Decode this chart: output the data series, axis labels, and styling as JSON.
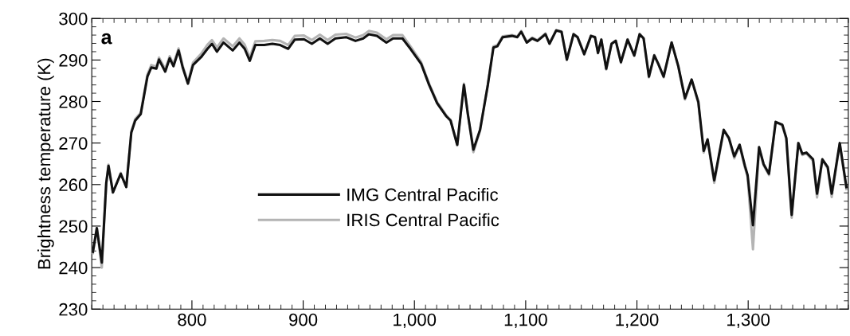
{
  "chart_data": {
    "type": "line",
    "ylabel": "Brightness temperature (K)",
    "annotations": [
      "a"
    ],
    "x": [
      711,
      714.5,
      719,
      723,
      725,
      729,
      736,
      741,
      745.5,
      749,
      754,
      760,
      763.5,
      768,
      770.4,
      776,
      780,
      783.4,
      788,
      791.7,
      796.4,
      801,
      808.3,
      814,
      818,
      822.5,
      828.4,
      836.7,
      842.7,
      847.4,
      852,
      857,
      865,
      872.3,
      879.4,
      886.5,
      892.4,
      900.7,
      907.8,
      915,
      922,
      929,
      938.6,
      947,
      954,
      959,
      966.3,
      974.8,
      980.8,
      989.2,
      996.4,
      1006,
      1013.2,
      1020.4,
      1028.8,
      1032.5,
      1038.5,
      1044.5,
      1048,
      1053,
      1059,
      1066,
      1071,
      1074.5,
      1079.3,
      1087.7,
      1092.5,
      1096,
      1101,
      1105.8,
      1110.6,
      1117.8,
      1121.4,
      1127.4,
      1132.2,
      1137,
      1143,
      1146.6,
      1152.6,
      1158.7,
      1162.3,
      1165,
      1168,
      1172.4,
      1177.2,
      1181,
      1185.6,
      1191.6,
      1197.6,
      1202.4,
      1206,
      1210.8,
      1215.6,
      1219.2,
      1224,
      1231.2,
      1237.2,
      1243.2,
      1249.2,
      1255.2,
      1260,
      1263.5,
      1269.5,
      1278,
      1282.7,
      1287.5,
      1292.3,
      1297.1,
      1299.5,
      1304.3,
      1309.8,
      1313.9,
      1318.7,
      1324.7,
      1330.7,
      1334.3,
      1339.1,
      1345.1,
      1348.7,
      1352.3,
      1358.3,
      1361.9,
      1366.7,
      1371.5,
      1375.1,
      1382.3,
      1388.3
    ],
    "series": [
      {
        "name": "IMG Central Pacific",
        "color": "#111111",
        "values": [
          243.8,
          249.5,
          241.2,
          260.4,
          264.5,
          258.1,
          262.6,
          259.4,
          272.5,
          275.4,
          277,
          286,
          288.2,
          287.9,
          290.1,
          287.2,
          290.4,
          288.5,
          292.3,
          288.2,
          284.3,
          288.8,
          290.7,
          292.7,
          293.9,
          292,
          294.2,
          292.3,
          294.2,
          292.7,
          289.8,
          293.6,
          293.6,
          293.9,
          293.6,
          292.7,
          294.9,
          295,
          293.9,
          295.2,
          293.9,
          295.2,
          295.5,
          294.6,
          295.2,
          296.2,
          295.8,
          294.2,
          295.2,
          295.2,
          292.7,
          289.1,
          284,
          279.6,
          276.4,
          275.4,
          269.6,
          284,
          277,
          268.4,
          273.2,
          284,
          293,
          293.3,
          295.5,
          295.8,
          295.5,
          296.8,
          294.2,
          295.2,
          294.6,
          296.2,
          293.9,
          297.1,
          296.8,
          290.1,
          296.2,
          295.5,
          291.4,
          295.8,
          295.5,
          291.7,
          294.9,
          287.9,
          293.9,
          294.6,
          289.5,
          294.9,
          291.1,
          296.2,
          295.2,
          286,
          291.1,
          289.1,
          286,
          294.2,
          288.5,
          280.8,
          285.3,
          279.9,
          268.1,
          270.9,
          261,
          273.2,
          271.2,
          266.8,
          269.6,
          264.5,
          262.3,
          250.2,
          269,
          264.9,
          262.6,
          275.1,
          274.4,
          271.2,
          252.7,
          270,
          267.4,
          267.7,
          266.1,
          257.8,
          266.1,
          264.2,
          257.8,
          270,
          259.4
        ]
      },
      {
        "name": "IRIS Central Pacific",
        "color": "#b4b4b4",
        "values": [
          243.5,
          249.5,
          240,
          260.4,
          264.8,
          258.1,
          262.8,
          259.4,
          272.8,
          275.8,
          277.3,
          286.5,
          288.8,
          288.4,
          290.6,
          287.8,
          290.9,
          289,
          292.8,
          288.6,
          284.6,
          289.4,
          291.5,
          293.7,
          294.8,
          293,
          295.2,
          293.3,
          295.2,
          293.7,
          290.6,
          294.5,
          294.6,
          294.8,
          294.6,
          293.6,
          295.8,
          295.9,
          294.8,
          296.1,
          294.8,
          296.1,
          296.3,
          295.4,
          296,
          297,
          296.6,
          295,
          296,
          296,
          293.3,
          289.5,
          284.3,
          279.9,
          276.6,
          275.6,
          269.4,
          284.3,
          277,
          267.8,
          273,
          284.2,
          293.3,
          293.6,
          295.7,
          296,
          295.7,
          297,
          294.4,
          295.4,
          294.8,
          296.4,
          294,
          297.2,
          296.9,
          290,
          296.3,
          295.6,
          291.3,
          295.9,
          295.6,
          291.6,
          295,
          287.7,
          294,
          294.7,
          289.3,
          295,
          291,
          296.3,
          295.3,
          285.8,
          291.2,
          289,
          285.8,
          294.3,
          288.3,
          280.5,
          285.2,
          279.6,
          267.7,
          270.7,
          260.4,
          273,
          271,
          266.3,
          269.4,
          264,
          261.8,
          244.4,
          268.8,
          264.6,
          262.3,
          275,
          274.2,
          270.9,
          252,
          269.8,
          267.1,
          267.5,
          265.7,
          256.9,
          265.8,
          263.9,
          257,
          269.8,
          258.9
        ]
      }
    ],
    "xlim": [
      710,
      1390
    ],
    "xticks": [
      800,
      900,
      {
        "value": 1000,
        "label": "1,000"
      },
      {
        "value": 1100,
        "label": "1,100"
      },
      {
        "value": 1200,
        "label": "1,200"
      },
      {
        "value": 1300,
        "label": "1,300"
      }
    ],
    "ylim": [
      230,
      300
    ],
    "yticks": [
      230,
      240,
      250,
      260,
      270,
      280,
      290,
      300
    ],
    "legend": "center",
    "grid": false,
    "line_style": "solid",
    "marker": "none"
  }
}
